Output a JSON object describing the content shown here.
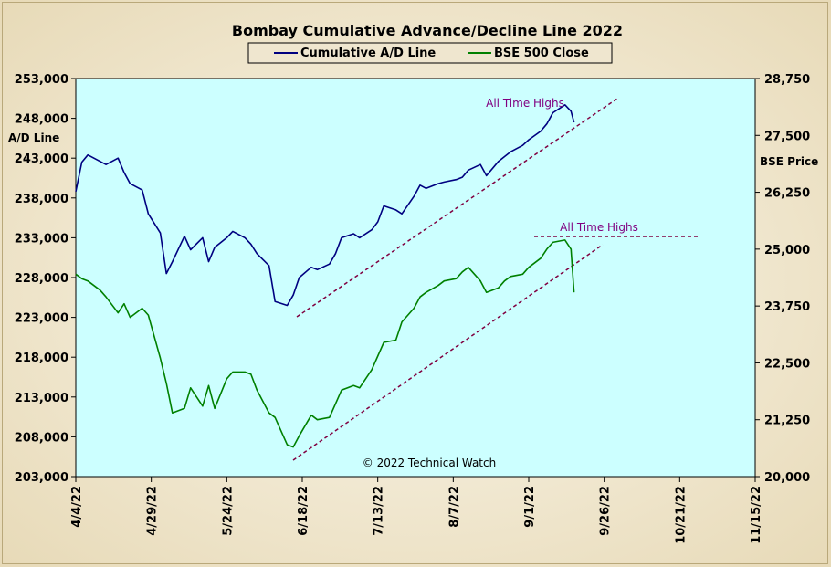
{
  "chart_data": {
    "type": "line",
    "title": "Bombay Cumulative Advance/Decline Line 2022",
    "legend_position": "top-center",
    "ylabel_left": "A/D Line",
    "ylabel_right": "BSE Price",
    "ylim_left": [
      203000,
      253000
    ],
    "ylim_right": [
      20000,
      28750
    ],
    "yticks_left": [
      "253,000",
      "248,000",
      "243,000",
      "238,000",
      "233,000",
      "228,000",
      "223,000",
      "218,000",
      "213,000",
      "208,000",
      "203,000"
    ],
    "yticks_right": [
      "28,750",
      "27,500",
      "26,250",
      "25,000",
      "23,750",
      "22,500",
      "21,250",
      "20,000"
    ],
    "xticks": [
      "4/4/22",
      "4/29/22",
      "5/24/22",
      "6/18/22",
      "7/13/22",
      "8/7/22",
      "9/1/22",
      "9/26/22",
      "10/21/22",
      "11/15/22"
    ],
    "x_start": "4/4/22",
    "x_end": "11/15/22",
    "copyright": "© 2022 Technical Watch",
    "annotations": [
      "All Time Highs",
      "All Time Highs"
    ],
    "colors": {
      "plot_bg": "#ccffff",
      "frame_bg": "#efe6cf",
      "ad_line": "#000080",
      "bse_line": "#008000",
      "trendline": "#800040",
      "annotation": "#800080"
    },
    "series": [
      {
        "name": "Cumulative A/D Line",
        "axis": "left",
        "x": [
          "4/4/22",
          "4/6/22",
          "4/8/22",
          "4/12/22",
          "4/14/22",
          "4/18/22",
          "4/20/22",
          "4/22/22",
          "4/26/22",
          "4/28/22",
          "5/2/22",
          "5/4/22",
          "5/6/22",
          "5/10/22",
          "5/12/22",
          "5/16/22",
          "5/18/22",
          "5/20/22",
          "5/24/22",
          "5/26/22",
          "5/30/22",
          "6/1/22",
          "6/3/22",
          "6/7/22",
          "6/9/22",
          "6/13/22",
          "6/15/22",
          "6/17/22",
          "6/21/22",
          "6/23/22",
          "6/27/22",
          "6/29/22",
          "7/1/22",
          "7/5/22",
          "7/7/22",
          "7/11/22",
          "7/13/22",
          "7/15/22",
          "7/19/22",
          "7/21/22",
          "7/25/22",
          "7/27/22",
          "7/29/22",
          "8/2/22",
          "8/4/22",
          "8/8/22",
          "8/10/22",
          "8/12/22",
          "8/16/22",
          "8/18/22",
          "8/22/22",
          "8/24/22",
          "8/26/22",
          "8/30/22",
          "9/1/22",
          "9/5/22",
          "9/7/22",
          "9/9/22",
          "9/13/22",
          "9/15/22",
          "9/16/22"
        ],
        "values": [
          238800,
          242500,
          243400,
          242600,
          242200,
          243000,
          241200,
          239800,
          239000,
          236000,
          233600,
          228500,
          230000,
          233200,
          231500,
          233000,
          230000,
          231800,
          233000,
          233800,
          233000,
          232200,
          231000,
          229500,
          225000,
          224500,
          225800,
          228000,
          229300,
          229000,
          229700,
          231000,
          233000,
          233500,
          233000,
          234000,
          235000,
          237000,
          236500,
          236000,
          238200,
          239600,
          239200,
          239800,
          240000,
          240300,
          240600,
          241500,
          242200,
          240800,
          242600,
          243200,
          243800,
          244600,
          245300,
          246400,
          247300,
          248700,
          249700,
          248900,
          247500
        ]
      },
      {
        "name": "BSE 500 Close",
        "axis": "right",
        "x": [
          "4/4/22",
          "4/6/22",
          "4/8/22",
          "4/12/22",
          "4/14/22",
          "4/18/22",
          "4/20/22",
          "4/22/22",
          "4/26/22",
          "4/28/22",
          "5/2/22",
          "5/4/22",
          "5/6/22",
          "5/10/22",
          "5/12/22",
          "5/16/22",
          "5/18/22",
          "5/20/22",
          "5/24/22",
          "5/26/22",
          "5/30/22",
          "6/1/22",
          "6/3/22",
          "6/7/22",
          "6/9/22",
          "6/13/22",
          "6/15/22",
          "6/17/22",
          "6/21/22",
          "6/23/22",
          "6/27/22",
          "6/29/22",
          "7/1/22",
          "7/5/22",
          "7/7/22",
          "7/11/22",
          "7/13/22",
          "7/15/22",
          "7/19/22",
          "7/21/22",
          "7/25/22",
          "7/27/22",
          "7/29/22",
          "8/2/22",
          "8/4/22",
          "8/8/22",
          "8/10/22",
          "8/12/22",
          "8/16/22",
          "8/18/22",
          "8/22/22",
          "8/24/22",
          "8/26/22",
          "8/30/22",
          "9/1/22",
          "9/5/22",
          "9/7/22",
          "9/9/22",
          "9/13/22",
          "9/15/22",
          "9/16/22"
        ],
        "values": [
          24450,
          24350,
          24300,
          24100,
          23950,
          23600,
          23800,
          23500,
          23700,
          23550,
          22600,
          22050,
          21400,
          21500,
          21950,
          21550,
          22000,
          21500,
          22150,
          22300,
          22300,
          22250,
          21900,
          21400,
          21300,
          20700,
          20650,
          20900,
          21350,
          21250,
          21300,
          21600,
          21900,
          22000,
          21950,
          22350,
          22650,
          22950,
          23000,
          23400,
          23700,
          23950,
          24050,
          24200,
          24300,
          24350,
          24500,
          24600,
          24300,
          24050,
          24150,
          24300,
          24400,
          24450,
          24600,
          24800,
          25000,
          25150,
          25200,
          25000,
          24050
        ]
      }
    ]
  }
}
